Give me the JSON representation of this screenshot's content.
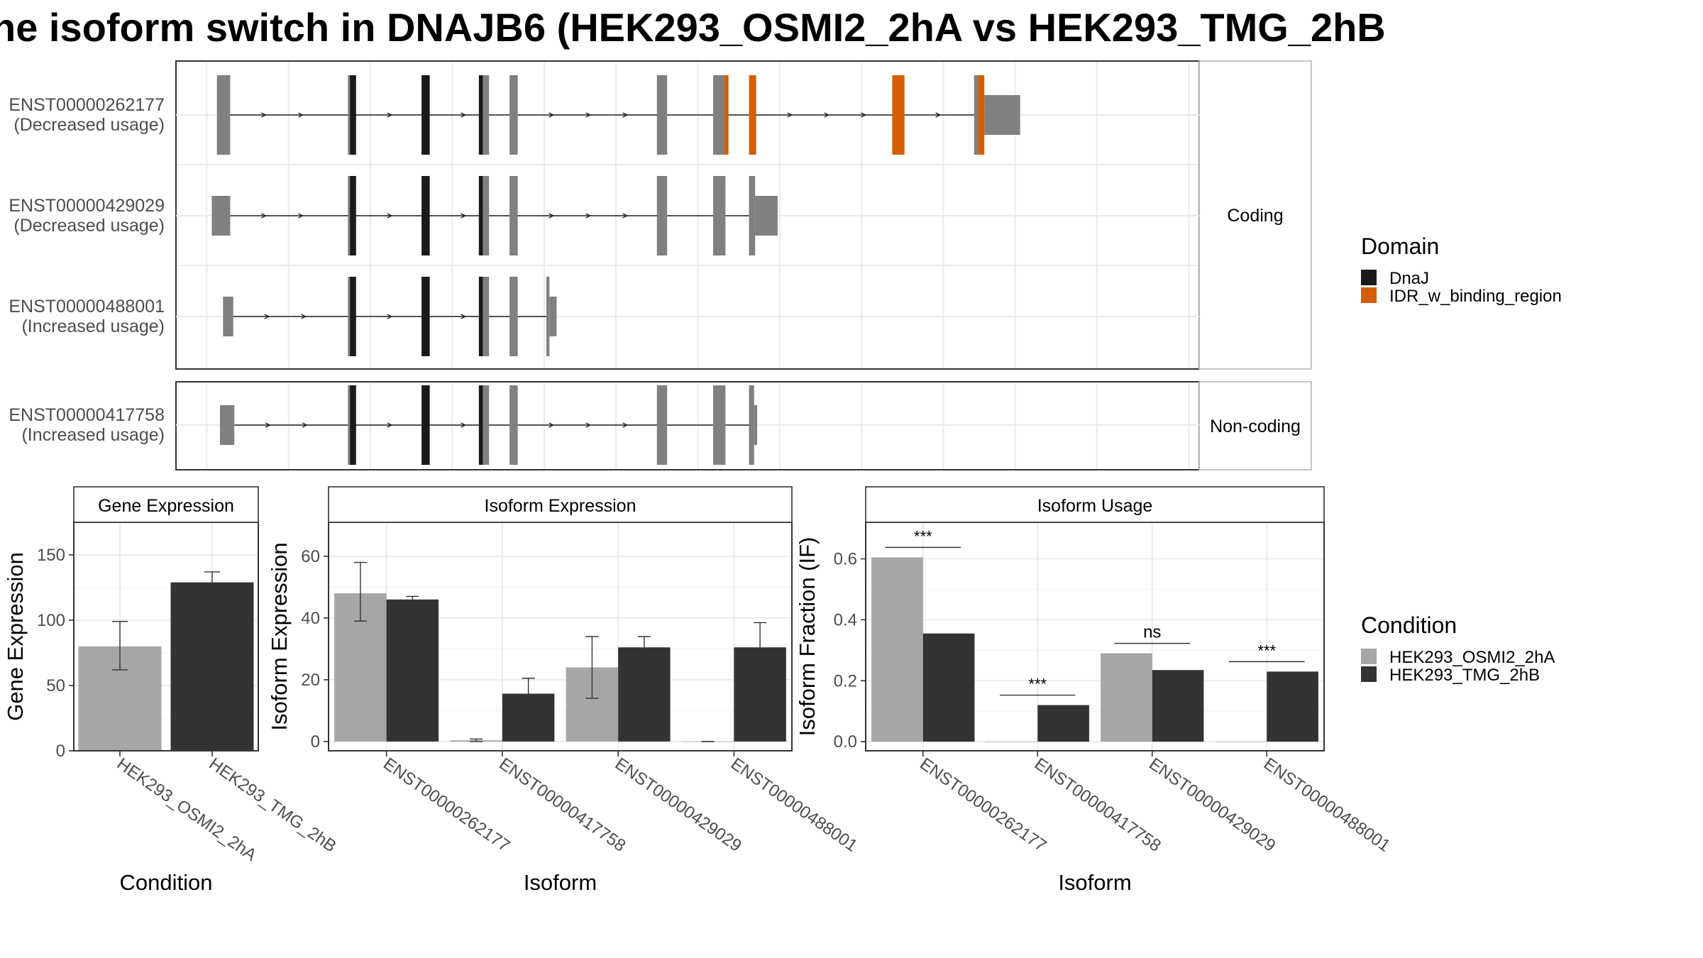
{
  "title": "ne isoform switch in DNAJB6 (HEK293_OSMI2_2hA vs HEK293_TMG_2hB",
  "colors": {
    "dnaj": "#1a1a1a",
    "idr": "#d55e00",
    "exon": "#808080",
    "cond_a": "#a6a6a6",
    "cond_b": "#333333",
    "grid": "#ebebeb",
    "strip_bg": "#ffffff"
  },
  "structure": {
    "coding_strip": "Coding",
    "noncoding_strip": "Non-coding",
    "tracks": [
      {
        "id": "ENST00000262177",
        "usage": "(Decreased usage)",
        "group": "coding",
        "exons": [
          [
            0.04,
            0.053
          ],
          [
            0.168,
            0.17
          ],
          [
            0.17,
            0.176
          ],
          [
            0.24,
            0.248
          ],
          [
            0.296,
            0.3
          ],
          [
            0.3,
            0.306
          ],
          [
            0.326,
            0.334
          ],
          [
            0.47,
            0.48
          ],
          [
            0.525,
            0.536
          ],
          [
            0.536,
            0.54
          ],
          [
            0.56,
            0.567
          ],
          [
            0.7,
            0.712
          ],
          [
            0.78,
            0.784
          ],
          [
            0.784,
            0.79
          ],
          [
            0.79,
            0.825
          ]
        ],
        "domains": [
          null,
          null,
          "dnaj",
          "dnaj",
          "dnaj",
          null,
          null,
          null,
          null,
          "idr",
          "idr",
          "idr",
          null,
          "idr",
          null
        ],
        "thin": [
          false,
          false,
          false,
          false,
          false,
          false,
          false,
          false,
          false,
          false,
          false,
          false,
          false,
          false,
          true
        ]
      },
      {
        "id": "ENST00000429029",
        "usage": "(Decreased usage)",
        "group": "coding",
        "exons": [
          [
            0.035,
            0.053
          ],
          [
            0.168,
            0.17
          ],
          [
            0.17,
            0.176
          ],
          [
            0.24,
            0.248
          ],
          [
            0.296,
            0.3
          ],
          [
            0.3,
            0.306
          ],
          [
            0.326,
            0.334
          ],
          [
            0.47,
            0.48
          ],
          [
            0.525,
            0.537
          ],
          [
            0.56,
            0.566
          ],
          [
            0.566,
            0.588
          ]
        ],
        "domains": [
          null,
          null,
          "dnaj",
          "dnaj",
          "dnaj",
          null,
          null,
          null,
          null,
          null,
          null
        ],
        "thin": [
          true,
          false,
          false,
          false,
          false,
          false,
          false,
          false,
          false,
          false,
          true
        ]
      },
      {
        "id": "ENST00000488001",
        "usage": "(Increased usage)",
        "group": "coding",
        "exons": [
          [
            0.046,
            0.056
          ],
          [
            0.168,
            0.17
          ],
          [
            0.17,
            0.176
          ],
          [
            0.24,
            0.248
          ],
          [
            0.296,
            0.3
          ],
          [
            0.3,
            0.306
          ],
          [
            0.326,
            0.334
          ],
          [
            0.362,
            0.365
          ],
          [
            0.365,
            0.372
          ]
        ],
        "domains": [
          null,
          null,
          "dnaj",
          "dnaj",
          "dnaj",
          null,
          null,
          null,
          null
        ],
        "thin": [
          true,
          false,
          false,
          false,
          false,
          false,
          false,
          false,
          true
        ]
      },
      {
        "id": "ENST00000417758",
        "usage": "(Increased usage)",
        "group": "noncoding",
        "exons": [
          [
            0.043,
            0.057
          ],
          [
            0.168,
            0.17
          ],
          [
            0.17,
            0.176
          ],
          [
            0.24,
            0.248
          ],
          [
            0.296,
            0.3
          ],
          [
            0.3,
            0.306
          ],
          [
            0.326,
            0.334
          ],
          [
            0.47,
            0.48
          ],
          [
            0.525,
            0.537
          ],
          [
            0.56,
            0.565
          ],
          [
            0.565,
            0.568
          ]
        ],
        "domains": [
          null,
          null,
          "dnaj",
          "dnaj",
          "dnaj",
          null,
          null,
          null,
          null,
          null,
          null
        ],
        "thin": [
          true,
          false,
          false,
          false,
          false,
          false,
          false,
          false,
          false,
          false,
          true
        ]
      }
    ]
  },
  "legend_domain": {
    "title": "Domain",
    "items": [
      {
        "label": "DnaJ",
        "key": "dnaj"
      },
      {
        "label": "IDR_w_binding_region",
        "key": "idr"
      }
    ]
  },
  "legend_condition": {
    "title": "Condition",
    "items": [
      {
        "label": "HEK293_OSMI2_2hA",
        "key": "cond_a"
      },
      {
        "label": "HEK293_TMG_2hB",
        "key": "cond_b"
      }
    ]
  },
  "chart_data": [
    {
      "type": "bar",
      "title": "Gene Expression",
      "xlabel": "Condition",
      "ylabel": "Gene Expression",
      "categories": [
        "HEK293_OSMI2_2hA",
        "HEK293_TMG_2hB"
      ],
      "values": [
        80,
        129
      ],
      "errors_low": [
        62,
        122
      ],
      "errors_high": [
        99,
        137
      ],
      "ylim": [
        0,
        175
      ],
      "yticks": [
        0,
        50,
        100,
        150
      ]
    },
    {
      "type": "bar",
      "title": "Isoform Expression",
      "xlabel": "Isoform",
      "ylabel": "Isoform Expression",
      "categories": [
        "ENST00000262177",
        "ENST00000417758",
        "ENST00000429029",
        "ENST00000488001"
      ],
      "series": [
        {
          "name": "HEK293_OSMI2_2hA",
          "values": [
            48,
            0.4,
            24,
            0
          ],
          "err_low": [
            39,
            0,
            14,
            0
          ],
          "err_high": [
            58,
            0.8,
            34,
            0
          ]
        },
        {
          "name": "HEK293_TMG_2hB",
          "values": [
            46,
            15.5,
            30.5,
            30.5
          ],
          "err_low": [
            45,
            11,
            27,
            22.5
          ],
          "err_high": [
            47,
            20.5,
            34,
            38.5
          ]
        }
      ],
      "ylim": [
        -3,
        71
      ],
      "yticks": [
        0,
        20,
        40,
        60
      ]
    },
    {
      "type": "bar",
      "title": "Isoform Usage",
      "xlabel": "Isoform",
      "ylabel": "Isoform Fraction (IF)",
      "categories": [
        "ENST00000262177",
        "ENST00000417758",
        "ENST00000429029",
        "ENST00000488001"
      ],
      "series": [
        {
          "name": "HEK293_OSMI2_2hA",
          "values": [
            0.605,
            0.0,
            0.29,
            0.0
          ]
        },
        {
          "name": "HEK293_TMG_2hB",
          "values": [
            0.355,
            0.12,
            0.235,
            0.23
          ]
        }
      ],
      "significance": [
        "***",
        "***",
        "ns",
        "***"
      ],
      "ylim": [
        -0.03,
        0.72
      ],
      "yticks": [
        "0.0",
        "0.2",
        "0.4",
        "0.6"
      ]
    }
  ]
}
